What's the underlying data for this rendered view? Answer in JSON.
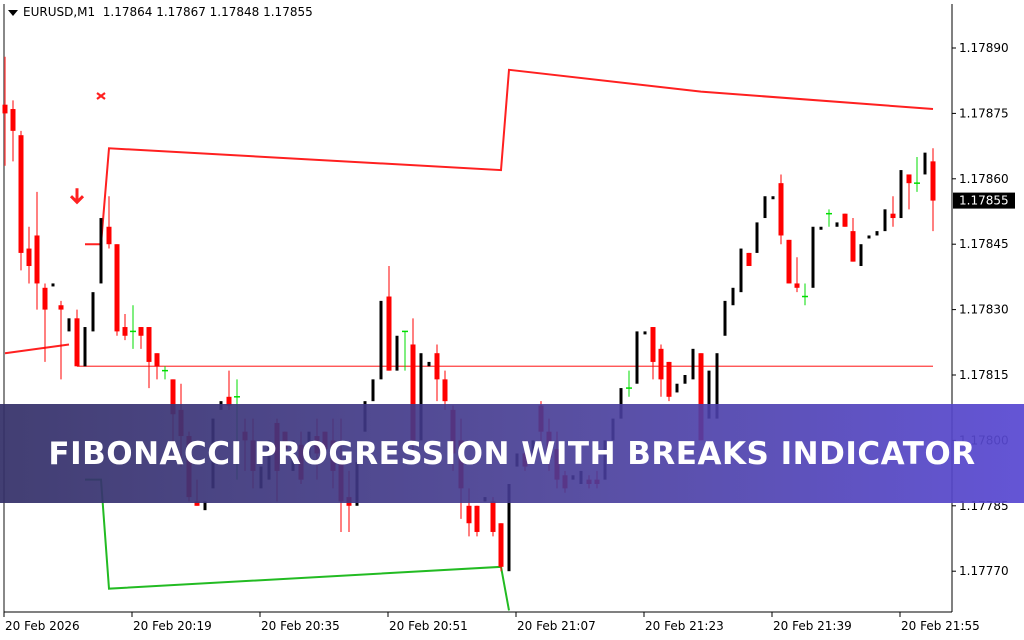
{
  "header": {
    "symbol": "EURUSD,M1",
    "ohlc": "1.17864 1.17867 1.17848 1.17855"
  },
  "banner": {
    "title": "FIBONACCI PROGRESSION WITH BREAKS INDICATOR"
  },
  "chart_data": {
    "type": "candlestick",
    "title": "",
    "ylim": [
      1.17761,
      1.17903
    ],
    "grid": false,
    "colors": {
      "bull": "#000000",
      "bear": "#ff0000",
      "doji": "#00dd00",
      "resistance": "#ff2020",
      "support": "#22bb22",
      "level": "#ff4040",
      "current_price_bg": "#000000"
    },
    "y_ticks": [
      "1.17890",
      "1.17875",
      "1.17860",
      "1.17845",
      "1.17830",
      "1.17815",
      "1.17800",
      "1.17785",
      "1.17770"
    ],
    "current_price": "1.17855",
    "x_ticks": [
      {
        "time": "20:03",
        "label": "20 Feb 2026"
      },
      {
        "time": "20:19",
        "label": "20 Feb 20:19"
      },
      {
        "time": "20:35",
        "label": "20 Feb 20:35"
      },
      {
        "time": "20:51",
        "label": "20 Feb 20:51"
      },
      {
        "time": "21:07",
        "label": "20 Feb 21:07"
      },
      {
        "time": "21:23",
        "label": "20 Feb 21:23"
      },
      {
        "time": "21:39",
        "label": "20 Feb 21:39"
      },
      {
        "time": "21:55",
        "label": "20 Feb 21:55"
      }
    ],
    "candles_format": [
      "time",
      "open",
      "high",
      "low",
      "close"
    ],
    "candles": [
      [
        "20:03",
        1.17877,
        1.17888,
        1.17863,
        1.17875
      ],
      [
        "20:04",
        1.17876,
        1.17878,
        1.17864,
        1.17871
      ],
      [
        "20:05",
        1.1787,
        1.17871,
        1.17839,
        1.17843
      ],
      [
        "20:06",
        1.17844,
        1.17849,
        1.17836,
        1.1784
      ],
      [
        "20:07",
        1.17847,
        1.17857,
        1.1783,
        1.17836
      ],
      [
        "20:08",
        1.17835,
        1.17836,
        1.17818,
        1.1783
      ],
      [
        "20:09",
        1.17836,
        1.17836,
        1.17836,
        1.17836
      ],
      [
        "20:10",
        1.17831,
        1.17832,
        1.17814,
        1.1783
      ],
      [
        "20:11",
        1.17825,
        1.17828,
        1.17825,
        1.17828
      ],
      [
        "20:12",
        1.17828,
        1.1783,
        1.17817,
        1.17817
      ],
      [
        "20:13",
        1.17817,
        1.17826,
        1.17817,
        1.17826
      ],
      [
        "20:14",
        1.17825,
        1.17834,
        1.17825,
        1.17834
      ],
      [
        "20:15",
        1.17836,
        1.17851,
        1.17836,
        1.17851
      ],
      [
        "20:16",
        1.17849,
        1.17856,
        1.17844,
        1.17845
      ],
      [
        "20:17",
        1.17845,
        1.17845,
        1.17824,
        1.17825
      ],
      [
        "20:18",
        1.17826,
        1.17829,
        1.17823,
        1.17824
      ],
      [
        "20:19",
        1.17825,
        1.17831,
        1.17821,
        1.17825
      ],
      [
        "20:20",
        1.17826,
        1.17826,
        1.17821,
        1.17824
      ],
      [
        "20:21",
        1.17826,
        1.17826,
        1.17812,
        1.17818
      ],
      [
        "20:22",
        1.1782,
        1.1782,
        1.17814,
        1.17817
      ],
      [
        "20:23",
        1.17816,
        1.17817,
        1.17814,
        1.17816
      ],
      [
        "20:24",
        1.17814,
        1.17814,
        1.17799,
        1.17806
      ],
      [
        "20:25",
        1.17807,
        1.17813,
        1.17794,
        1.17801
      ],
      [
        "20:26",
        1.17801,
        1.17802,
        1.17786,
        1.17787
      ],
      [
        "20:27",
        1.17786,
        1.17791,
        1.17785,
        1.17785
      ],
      [
        "20:28",
        1.17784,
        1.17786,
        1.17784,
        1.17786
      ],
      [
        "20:29",
        1.17789,
        1.17805,
        1.17789,
        1.17805
      ],
      [
        "20:30",
        1.17807,
        1.17809,
        1.17807,
        1.17809
      ],
      [
        "20:31",
        1.1781,
        1.17816,
        1.17807,
        1.17808
      ],
      [
        "20:32",
        1.1781,
        1.17814,
        1.17791,
        1.1781
      ],
      [
        "20:33",
        1.17802,
        1.17805,
        1.17793,
        1.178
      ],
      [
        "20:34",
        1.178,
        1.17805,
        1.17789,
        1.17793
      ],
      [
        "20:35",
        1.17789,
        1.17794,
        1.17789,
        1.17794
      ],
      [
        "20:36",
        1.17791,
        1.178,
        1.17791,
        1.178
      ],
      [
        "20:37",
        1.17804,
        1.17805,
        1.17786,
        1.17793
      ],
      [
        "20:38",
        1.17802,
        1.17802,
        1.17798,
        1.17798
      ],
      [
        "20:39",
        1.17793,
        1.178,
        1.17793,
        1.178
      ],
      [
        "20:40",
        1.17799,
        1.17802,
        1.1779,
        1.17791
      ],
      [
        "20:41",
        1.17795,
        1.17802,
        1.17795,
        1.17802
      ],
      [
        "20:42",
        1.17801,
        1.17805,
        1.17791,
        1.17797
      ],
      [
        "20:43",
        1.17802,
        1.17802,
        1.17798,
        1.17798
      ],
      [
        "20:44",
        1.178,
        1.17805,
        1.17789,
        1.17793
      ],
      [
        "20:45",
        1.17795,
        1.17805,
        1.17779,
        1.17786
      ],
      [
        "20:46",
        1.17787,
        1.17793,
        1.17779,
        1.17785
      ],
      [
        "20:47",
        1.17785,
        1.17795,
        1.17783,
        1.17795
      ],
      [
        "20:48",
        1.17802,
        1.17809,
        1.17802,
        1.17809
      ],
      [
        "20:49",
        1.17809,
        1.17814,
        1.17809,
        1.17814
      ],
      [
        "20:50",
        1.17814,
        1.17832,
        1.17814,
        1.17832
      ],
      [
        "20:51",
        1.17833,
        1.1784,
        1.17816,
        1.17816
      ],
      [
        "20:52",
        1.17816,
        1.17824,
        1.17816,
        1.17824
      ],
      [
        "20:53",
        1.17825,
        1.17825,
        1.17816,
        1.17825
      ],
      [
        "20:54",
        1.17822,
        1.17828,
        1.17796,
        1.178
      ],
      [
        "20:55",
        1.178,
        1.1782,
        1.178,
        1.1782
      ],
      [
        "20:56",
        1.17817,
        1.17818,
        1.17817,
        1.17818
      ],
      [
        "20:57",
        1.1782,
        1.17822,
        1.17809,
        1.17814
      ],
      [
        "20:58",
        1.17814,
        1.17816,
        1.17807,
        1.17809
      ],
      [
        "20:59",
        1.17807,
        1.17808,
        1.17793,
        1.17797
      ],
      [
        "21:00",
        1.178,
        1.17805,
        1.17782,
        1.17789
      ],
      [
        "21:01",
        1.17785,
        1.17789,
        1.17778,
        1.17781
      ],
      [
        "21:02",
        1.17785,
        1.17785,
        1.17778,
        1.17779
      ],
      [
        "21:03",
        1.17786,
        1.17787,
        1.17786,
        1.17787
      ],
      [
        "21:04",
        1.17786,
        1.17787,
        1.17778,
        1.17779
      ],
      [
        "21:05",
        1.17781,
        1.17781,
        1.1777,
        1.17771
      ],
      [
        "21:06",
        1.1777,
        1.1779,
        1.1777,
        1.1779
      ],
      [
        "21:07",
        1.17794,
        1.17797,
        1.17794,
        1.17797
      ],
      [
        "21:08",
        1.17797,
        1.178,
        1.17793,
        1.17794
      ],
      [
        "21:09",
        1.17797,
        1.178,
        1.17797,
        1.178
      ],
      [
        "21:10",
        1.17808,
        1.17809,
        1.17798,
        1.17802
      ],
      [
        "21:11",
        1.17802,
        1.17805,
        1.17793,
        1.17796
      ],
      [
        "21:12",
        1.17798,
        1.17802,
        1.17789,
        1.17791
      ],
      [
        "21:13",
        1.17792,
        1.17793,
        1.17788,
        1.17789
      ],
      [
        "21:14",
        1.17791,
        1.17792,
        1.17791,
        1.17792
      ],
      [
        "21:15",
        1.1779,
        1.17793,
        1.1779,
        1.17793
      ],
      [
        "21:16",
        1.17791,
        1.17792,
        1.17789,
        1.1779
      ],
      [
        "21:17",
        1.17791,
        1.17793,
        1.17789,
        1.1779
      ],
      [
        "21:18",
        1.17791,
        1.178,
        1.17791,
        1.178
      ],
      [
        "21:19",
        1.178,
        1.17805,
        1.178,
        1.17805
      ],
      [
        "21:20",
        1.17805,
        1.17812,
        1.17805,
        1.17812
      ],
      [
        "21:21",
        1.17812,
        1.17816,
        1.1781,
        1.17812
      ],
      [
        "21:22",
        1.17813,
        1.17825,
        1.17813,
        1.17825
      ],
      [
        "21:23",
        1.17825,
        1.17825,
        1.17825,
        1.17825
      ],
      [
        "21:24",
        1.17826,
        1.17826,
        1.17814,
        1.17818
      ],
      [
        "21:25",
        1.17821,
        1.17822,
        1.1781,
        1.17814
      ],
      [
        "21:26",
        1.17818,
        1.17818,
        1.17809,
        1.1781
      ],
      [
        "21:27",
        1.17811,
        1.17813,
        1.17811,
        1.17813
      ],
      [
        "21:28",
        1.17813,
        1.17815,
        1.17813,
        1.17815
      ],
      [
        "21:29",
        1.17814,
        1.17821,
        1.17814,
        1.17821
      ],
      [
        "21:30",
        1.1782,
        1.1782,
        1.178,
        1.178
      ],
      [
        "21:31",
        1.17805,
        1.17816,
        1.17805,
        1.17816
      ],
      [
        "21:32",
        1.17805,
        1.1782,
        1.17805,
        1.1782
      ],
      [
        "21:33",
        1.17824,
        1.17832,
        1.17824,
        1.17832
      ],
      [
        "21:34",
        1.17831,
        1.17835,
        1.17831,
        1.17835
      ],
      [
        "21:35",
        1.17834,
        1.17844,
        1.17834,
        1.17844
      ],
      [
        "21:36",
        1.17843,
        1.17843,
        1.1784,
        1.1784
      ],
      [
        "21:37",
        1.17843,
        1.1785,
        1.17843,
        1.1785
      ],
      [
        "21:38",
        1.17851,
        1.17856,
        1.17851,
        1.17856
      ],
      [
        "21:39",
        1.17856,
        1.17856,
        1.17856,
        1.17856
      ],
      [
        "21:40",
        1.17859,
        1.17861,
        1.17845,
        1.17847
      ],
      [
        "21:41",
        1.17846,
        1.17846,
        1.17836,
        1.17836
      ],
      [
        "21:42",
        1.17836,
        1.17842,
        1.17834,
        1.17835
      ],
      [
        "21:43",
        1.17833,
        1.17836,
        1.17831,
        1.17833
      ],
      [
        "21:44",
        1.17835,
        1.17849,
        1.17835,
        1.17849
      ],
      [
        "21:45",
        1.17849,
        1.17849,
        1.17849,
        1.17849
      ],
      [
        "21:46",
        1.17852,
        1.17853,
        1.17849,
        1.17852
      ],
      [
        "21:47",
        1.17849,
        1.1785,
        1.17849,
        1.1785
      ],
      [
        "21:48",
        1.17852,
        1.17852,
        1.17849,
        1.17849
      ],
      [
        "21:49",
        1.17848,
        1.17851,
        1.17841,
        1.17841
      ],
      [
        "21:50",
        1.1784,
        1.17845,
        1.1784,
        1.17845
      ],
      [
        "21:51",
        1.17847,
        1.17847,
        1.17847,
        1.17847
      ],
      [
        "21:52",
        1.17847,
        1.17848,
        1.17847,
        1.17848
      ],
      [
        "21:53",
        1.17848,
        1.17853,
        1.17848,
        1.17853
      ],
      [
        "21:54",
        1.17852,
        1.17856,
        1.17849,
        1.17851
      ],
      [
        "21:55",
        1.17851,
        1.17862,
        1.17851,
        1.17862
      ],
      [
        "21:56",
        1.17861,
        1.17861,
        1.17853,
        1.17859
      ],
      [
        "21:57",
        1.17859,
        1.17865,
        1.17857,
        1.17859
      ],
      [
        "21:58",
        1.17861,
        1.17866,
        1.17861,
        1.17866
      ],
      [
        "21:59",
        1.17864,
        1.17867,
        1.17848,
        1.17855
      ]
    ],
    "lines": [
      {
        "role": "resistance",
        "points": [
          [
            "20:13",
            1.17845
          ],
          [
            "20:15",
            1.17845
          ],
          [
            "20:16",
            1.17867
          ],
          [
            "21:05",
            1.17862
          ],
          [
            "21:06",
            1.17885
          ],
          [
            "21:30",
            1.1788
          ],
          [
            "21:59",
            1.17876
          ]
        ]
      },
      {
        "role": "resistance-old",
        "points": [
          [
            "20:03",
            1.1782
          ],
          [
            "20:11",
            1.17822
          ]
        ]
      },
      {
        "role": "level",
        "points": [
          [
            "20:12",
            1.17817
          ],
          [
            "21:59",
            1.17817
          ]
        ]
      },
      {
        "role": "support",
        "points": [
          [
            "20:13",
            1.17791
          ],
          [
            "20:15",
            1.17791
          ],
          [
            "20:16",
            1.17766
          ],
          [
            "21:05",
            1.17771
          ],
          [
            "21:06",
            1.17761
          ]
        ]
      }
    ],
    "markers": [
      {
        "type": "cross",
        "time": "20:15",
        "price": 1.17879
      },
      {
        "type": "down-arrow",
        "time": "20:12",
        "price": 1.17856
      }
    ]
  }
}
